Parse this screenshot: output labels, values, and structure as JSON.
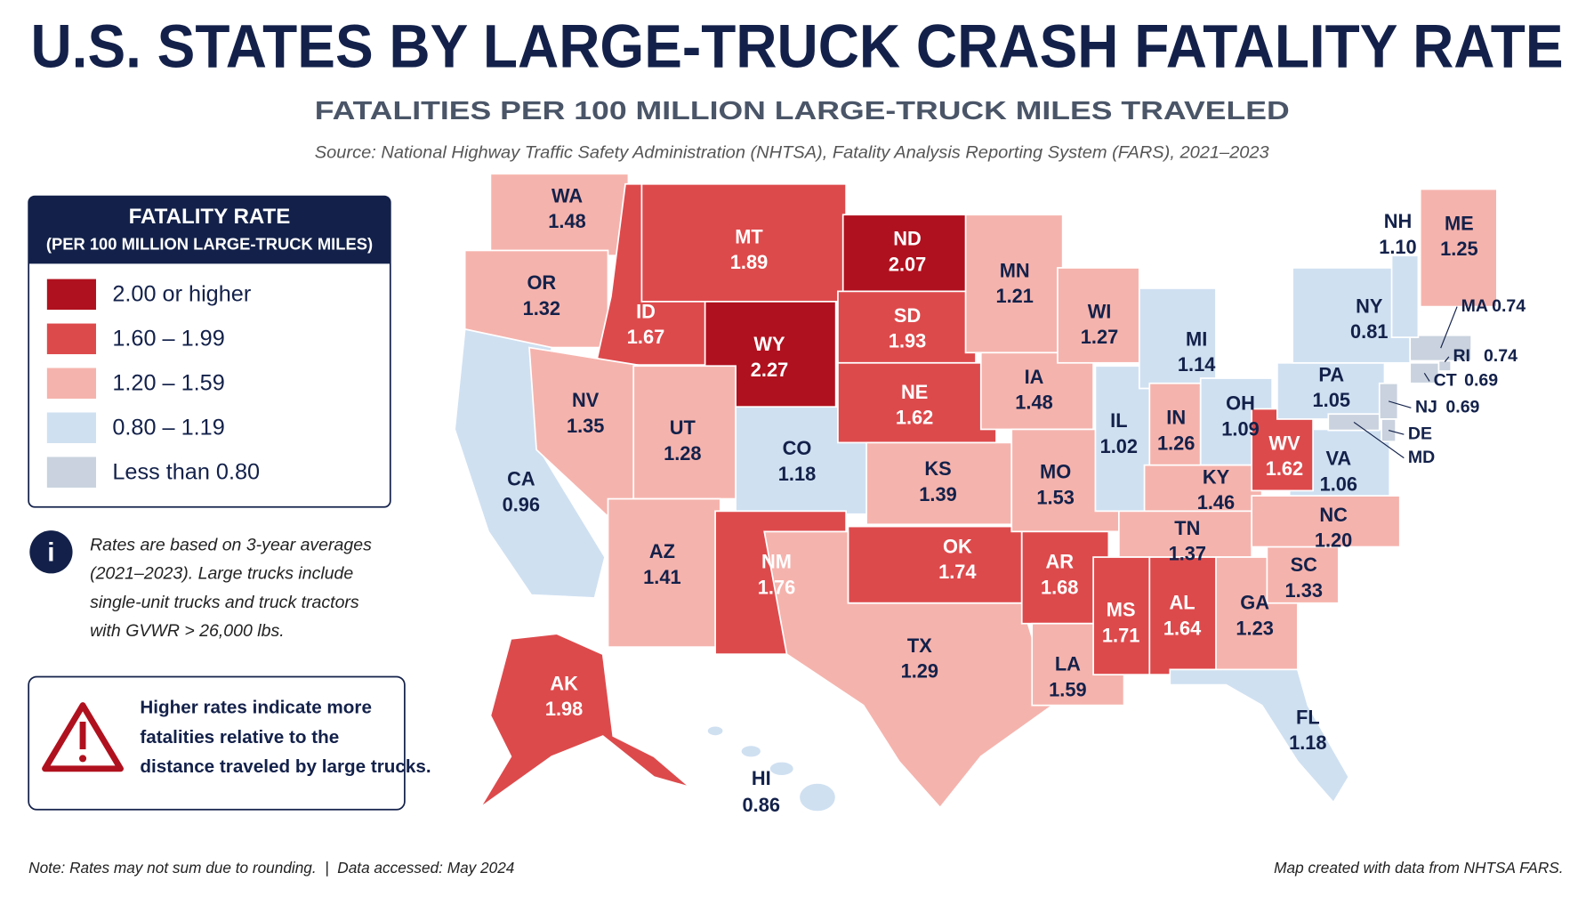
{
  "header": {
    "title": "U.S. STATES BY LARGE-TRUCK CRASH FATALITY RATE",
    "subtitle": "FATALITIES PER 100 MILLION LARGE-TRUCK MILES TRAVELED",
    "source": "Source: National Highway Traffic Safety Administration (NHTSA), Fatality Analysis Reporting System (FARS), 2021–2023"
  },
  "legend": {
    "title": "FATALITY RATE",
    "subtitle": "(PER 100 MILLION LARGE-TRUCK MILES)",
    "bins": [
      {
        "label": "2.00 or higher",
        "min": 2.0,
        "color": "#b0111e"
      },
      {
        "label": "1.60 – 1.99",
        "min": 1.6,
        "color": "#dd4a4c"
      },
      {
        "label": "1.20 – 1.59",
        "min": 1.2,
        "color": "#f5b3ad"
      },
      {
        "label": "0.80 – 1.19",
        "min": 0.8,
        "color": "#cfe0f1"
      },
      {
        "label": "Less than 0.80",
        "color": "#c9d2de"
      }
    ]
  },
  "info_note": [
    "Rates are based on 3-year averages",
    "(2021–2023). Large trucks include",
    "single-unit trucks and truck tractors",
    "with GVWR > 26,000 lbs."
  ],
  "warning_note": [
    "Higher rates indicate more",
    "fatalities relative to the",
    "distance traveled by large trucks."
  ],
  "states": [
    {
      "abbr": "WA",
      "value": 1.48
    },
    {
      "abbr": "OR",
      "value": 1.32
    },
    {
      "abbr": "CA",
      "value": 0.96
    },
    {
      "abbr": "ID",
      "value": 1.67
    },
    {
      "abbr": "NV",
      "value": 1.35
    },
    {
      "abbr": "MT",
      "value": 1.89
    },
    {
      "abbr": "WY",
      "value": 2.27
    },
    {
      "abbr": "UT",
      "value": 1.28
    },
    {
      "abbr": "AZ",
      "value": 1.41
    },
    {
      "abbr": "CO",
      "value": 1.18
    },
    {
      "abbr": "NM",
      "value": 1.76
    },
    {
      "abbr": "ND",
      "value": 2.07
    },
    {
      "abbr": "SD",
      "value": 1.93
    },
    {
      "abbr": "NE",
      "value": 1.62
    },
    {
      "abbr": "KS",
      "value": 1.39
    },
    {
      "abbr": "OK",
      "value": 1.74
    },
    {
      "abbr": "TX",
      "value": 1.29
    },
    {
      "abbr": "MN",
      "value": 1.21
    },
    {
      "abbr": "IA",
      "value": 1.48
    },
    {
      "abbr": "MO",
      "value": 1.53
    },
    {
      "abbr": "AR",
      "value": 1.68
    },
    {
      "abbr": "LA",
      "value": 1.59
    },
    {
      "abbr": "WI",
      "value": 1.27
    },
    {
      "abbr": "IL",
      "value": 1.02
    },
    {
      "abbr": "MI",
      "value": 1.14
    },
    {
      "abbr": "IN",
      "value": 1.26
    },
    {
      "abbr": "OH",
      "value": 1.09
    },
    {
      "abbr": "KY",
      "value": 1.46
    },
    {
      "abbr": "TN",
      "value": 1.37
    },
    {
      "abbr": "MS",
      "value": 1.71
    },
    {
      "abbr": "AL",
      "value": 1.64
    },
    {
      "abbr": "GA",
      "value": 1.23
    },
    {
      "abbr": "FL",
      "value": 1.18
    },
    {
      "abbr": "SC",
      "value": 1.33
    },
    {
      "abbr": "NC",
      "value": 1.2,
      "value_label": "1.20"
    },
    {
      "abbr": "VA",
      "value": 1.06
    },
    {
      "abbr": "WV",
      "value": 1.62
    },
    {
      "abbr": "PA",
      "value": 1.05
    },
    {
      "abbr": "NY",
      "value": 0.81
    },
    {
      "abbr": "NJ",
      "value": 0.69
    },
    {
      "abbr": "DE"
    },
    {
      "abbr": "MD"
    },
    {
      "abbr": "CT",
      "value": 0.69
    },
    {
      "abbr": "RI",
      "value": 0.74
    },
    {
      "abbr": "MA",
      "value": 0.74
    },
    {
      "abbr": "NH",
      "value": 1.1,
      "value_label": "1.10"
    },
    {
      "abbr": "ME",
      "value": 1.25
    },
    {
      "abbr": "AK",
      "value": 1.98
    },
    {
      "abbr": "HI",
      "value": 0.86
    }
  ],
  "footer": {
    "left": "Note: Rates may not sum due to rounding.  |  Data accessed: May 2024",
    "right": "Map created with data from NHTSA FARS."
  }
}
